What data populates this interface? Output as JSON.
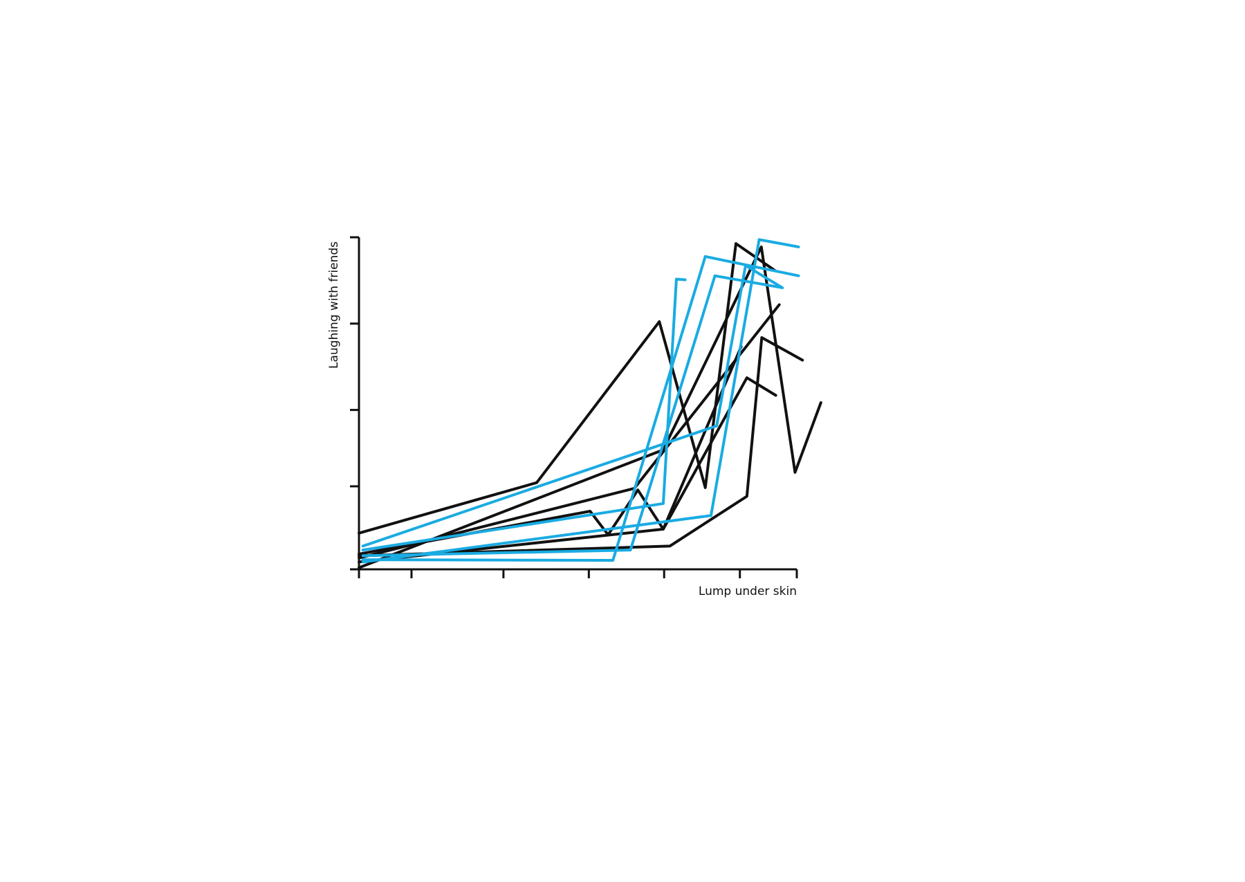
{
  "chart_data": {
    "type": "line",
    "x_label": "Lump under skin",
    "y_label": "Laughing with friends",
    "xlim": [
      0,
      100
    ],
    "ylim": [
      0,
      100
    ],
    "xticks": [
      0,
      12,
      33,
      52.5,
      69.7,
      87,
      100
    ],
    "yticks": [
      0,
      25,
      48,
      74,
      100
    ],
    "series": [
      {
        "color": "#111111",
        "x": [
          0,
          40.6,
          68.6,
          79.1,
          86.1,
          95.1
        ],
        "values": [
          10.9,
          26.1,
          74.6,
          24.6,
          98.1,
          89.9
        ]
      },
      {
        "color": "#111111",
        "x": [
          0,
          69.5,
          91.9,
          99.6,
          105.5
        ],
        "values": [
          0.5,
          36,
          97.1,
          29.2,
          50.2
        ]
      },
      {
        "color": "#111111",
        "x": [
          0,
          52.8,
          56.9,
          63.7,
          69.5,
          87.3
        ],
        "values": [
          4.6,
          17.5,
          10.4,
          23.9,
          12.1,
          67.1
        ]
      },
      {
        "color": "#111111",
        "x": [
          0,
          71,
          88.6,
          92,
          101.3
        ],
        "values": [
          4.1,
          7,
          22,
          69.8,
          63
        ]
      },
      {
        "color": "#111111",
        "x": [
          0,
          69.5,
          88.6,
          95.2
        ],
        "values": [
          2.2,
          12.1,
          57.7,
          52.4
        ]
      },
      {
        "color": "#111111",
        "x": [
          0,
          62.9,
          96
        ],
        "values": [
          3.4,
          24.4,
          79.7
        ]
      },
      {
        "color": "#1aabe2",
        "x": [
          0.9,
          69.5,
          72.5,
          74.5
        ],
        "values": [
          5.8,
          19.8,
          87.4,
          87.2
        ]
      },
      {
        "color": "#1aabe2",
        "x": [
          0.9,
          81.7,
          88.3,
          96.7
        ],
        "values": [
          7,
          43.2,
          91.5,
          84.8
        ]
      },
      {
        "color": "#1aabe2",
        "x": [
          0.9,
          58,
          79.1,
          100.4
        ],
        "values": [
          2.9,
          2.7,
          94.2,
          88.4
        ]
      },
      {
        "color": "#1aabe2",
        "x": [
          0.9,
          62,
          81.3,
          96.7
        ],
        "values": [
          4.1,
          5.8,
          88.4,
          84.8
        ]
      },
      {
        "color": "#1aabe2",
        "x": [
          0.9,
          80.4,
          91.4,
          100.4
        ],
        "values": [
          2.2,
          16.2,
          99.3,
          97.1
        ]
      }
    ]
  }
}
